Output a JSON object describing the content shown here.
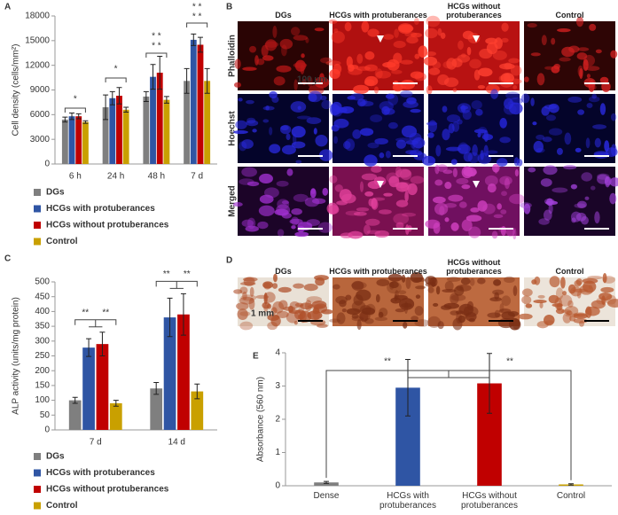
{
  "chart_data": [
    {
      "type": "bar",
      "label": "A",
      "y_label": "Cell density (cells/mm²)",
      "categories": [
        "6 h",
        "24 h",
        "48 h",
        "7 d"
      ],
      "series": [
        {
          "name": "DGs",
          "color": "#7f7f7f",
          "values": [
            5400,
            6900,
            8200,
            10100
          ],
          "errors": [
            300,
            1500,
            600,
            1500
          ]
        },
        {
          "name": "HCGs with protuberances",
          "color": "#2f55a4",
          "values": [
            5800,
            8000,
            10600,
            15100
          ],
          "errors": [
            400,
            800,
            1500,
            700
          ]
        },
        {
          "name": "HCGs without protuberances",
          "color": "#c00000",
          "values": [
            5800,
            8300,
            11100,
            14500
          ],
          "errors": [
            300,
            1000,
            2000,
            900
          ]
        },
        {
          "name": "Control",
          "color": "#c9a000",
          "values": [
            5100,
            6600,
            7800,
            10100
          ],
          "errors": [
            150,
            300,
            400,
            1500
          ]
        }
      ],
      "ylim": [
        0,
        18000
      ],
      "yticks": [
        0,
        3000,
        6000,
        9000,
        12000,
        15000,
        18000
      ],
      "grid": false,
      "annotations": [
        "*",
        "*",
        "* *",
        "* *",
        "* *",
        "* *"
      ]
    },
    {
      "type": "bar",
      "label": "C",
      "y_label": "ALP activity (units/mg protein)",
      "categories": [
        "7 d",
        "14 d"
      ],
      "series": [
        {
          "name": "DGs",
          "color": "#7f7f7f",
          "values": [
            100,
            140
          ],
          "errors": [
            10,
            20
          ]
        },
        {
          "name": "HCGs with protuberances",
          "color": "#2f55a4",
          "values": [
            278,
            380
          ],
          "errors": [
            30,
            65
          ]
        },
        {
          "name": "HCGs without protuberances",
          "color": "#c00000",
          "values": [
            290,
            390
          ],
          "errors": [
            40,
            70
          ]
        },
        {
          "name": "Control",
          "color": "#c9a000",
          "values": [
            90,
            130
          ],
          "errors": [
            10,
            25
          ]
        }
      ],
      "ylim": [
        0,
        500
      ],
      "yticks": [
        0,
        50,
        100,
        150,
        200,
        250,
        300,
        350,
        400,
        450,
        500
      ],
      "grid": false,
      "annotations": [
        "**",
        "**",
        "**",
        "**"
      ]
    },
    {
      "type": "bar",
      "label": "E",
      "y_label": "Absorbance (560 nm)",
      "categories": [
        "Dense",
        "HCGs with protuberances",
        "HCGs without protuberances",
        "Control"
      ],
      "values": [
        0.1,
        2.95,
        3.08,
        0.04
      ],
      "errors": [
        0.03,
        0.85,
        0.9,
        0.02
      ],
      "colors": [
        "#7f7f7f",
        "#2f55a4",
        "#c00000",
        "#c9a000"
      ],
      "ylim": [
        0,
        4
      ],
      "yticks": [
        0,
        1,
        2,
        3,
        4
      ],
      "grid": false,
      "annotations": [
        "**",
        "**"
      ]
    }
  ],
  "image_panels": [
    {
      "label": "B",
      "columns": [
        "DGs",
        "HCGs with protuberances",
        "HCGs without protuberances",
        "Control"
      ],
      "rows": [
        "Phalloidin",
        "Hoechst",
        "Merged"
      ],
      "scale_bar": "100 µm"
    },
    {
      "label": "D",
      "columns": [
        "DGs",
        "HCGs with protuberances",
        "HCGs without protuberances",
        "Control"
      ],
      "scale_bar": "1 mm"
    }
  ]
}
